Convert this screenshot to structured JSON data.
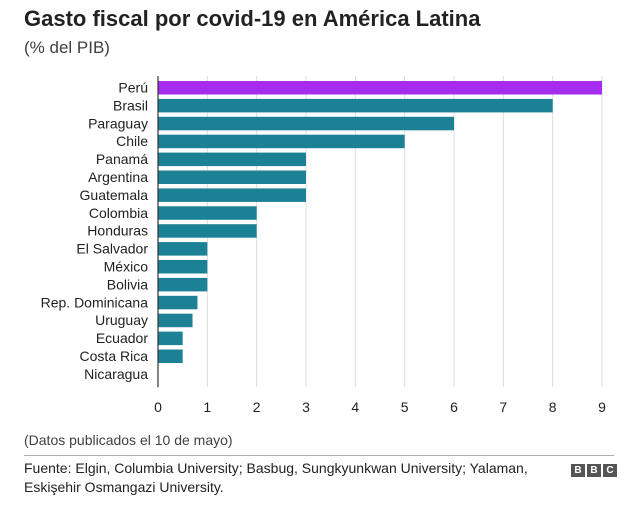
{
  "header": {
    "title": "Gasto fiscal por covid-19 en América Latina",
    "subtitle": "(% del PIB)"
  },
  "chart_data": {
    "type": "bar",
    "orientation": "horizontal",
    "title": "Gasto fiscal por covid-19 en América Latina",
    "subtitle": "(% del PIB)",
    "categories": [
      "Perú",
      "Brasil",
      "Paraguay",
      "Chile",
      "Panamá",
      "Argentina",
      "Guatemala",
      "Colombia",
      "Honduras",
      "El Salvador",
      "México",
      "Bolivia",
      "Rep. Dominicana",
      "Uruguay",
      "Ecuador",
      "Costa Rica",
      "Nicaragua"
    ],
    "values": [
      9.0,
      8.0,
      6.0,
      5.0,
      3.0,
      3.0,
      3.0,
      2.0,
      2.0,
      1.0,
      1.0,
      1.0,
      0.8,
      0.7,
      0.5,
      0.5,
      0.0
    ],
    "highlight": "Perú",
    "colors": {
      "default": "#1d8195",
      "highlight": "#a62df0",
      "grid": "#dddddd",
      "axis": "#333333"
    },
    "xlim": [
      0,
      9
    ],
    "xticks": [
      "0",
      "1",
      "2",
      "3",
      "4",
      "5",
      "6",
      "7",
      "8",
      "9"
    ],
    "grid": true,
    "xlabel": "",
    "ylabel": ""
  },
  "footer": {
    "note": "(Datos publicados el 10 de mayo)",
    "source": "Fuente: Elgin, Columbia University; Basbug, Sungkyunkwan University; Yalaman, Eskişehir Osmangazi University.",
    "logo_letters": [
      "B",
      "B",
      "C"
    ]
  }
}
